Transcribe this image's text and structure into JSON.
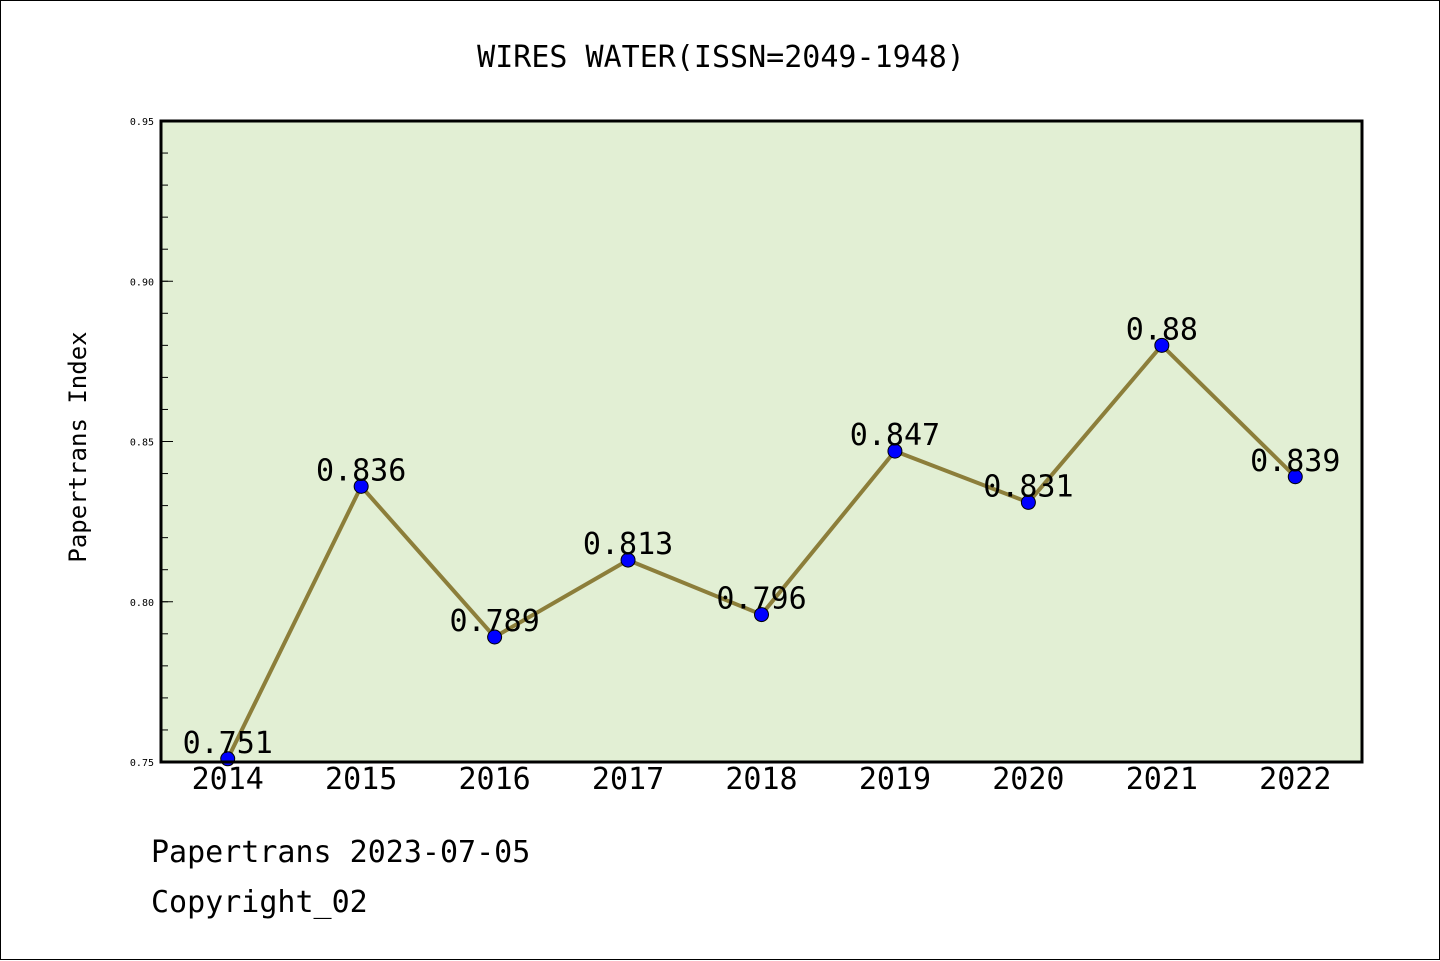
{
  "chart_data": {
    "type": "line",
    "title": "WIRES WATER(ISSN=2049-1948)",
    "xlabel": "",
    "ylabel": "Papertrans Index",
    "categories": [
      "2014",
      "2015",
      "2016",
      "2017",
      "2018",
      "2019",
      "2020",
      "2021",
      "2022"
    ],
    "series": [
      {
        "values": [
          0.751,
          0.836,
          0.789,
          0.813,
          0.796,
          0.847,
          0.831,
          0.88,
          0.839
        ],
        "labels": [
          "0.751",
          "0.836",
          "0.789",
          "0.813",
          "0.796",
          "0.847",
          "0.831",
          "0.88",
          "0.839"
        ]
      }
    ],
    "ylim": [
      0.75,
      0.95
    ],
    "yticks": [
      "0.75",
      "0.80",
      "0.85",
      "0.90",
      "0.95"
    ],
    "grid": false,
    "colors": {
      "plot_background": "#e2efd4",
      "line": "#8c7e3a",
      "marker": "#0000ff"
    }
  },
  "footer": {
    "line1": "Papertrans 2023-07-05",
    "line2": "Copyright_02"
  }
}
